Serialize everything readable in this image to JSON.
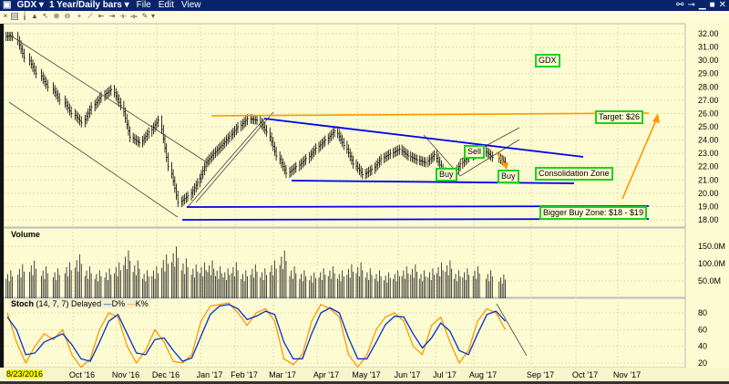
{
  "window": {
    "symbol": "GDX",
    "timeframe": "1 Year/Daily bars",
    "menu": [
      "File",
      "Edit",
      "View"
    ]
  },
  "panels": {
    "volume_title": "Volume",
    "stoch_title": "Stoch",
    "stoch_params": "(14, 7, 7) Delayed",
    "d_label": "D%",
    "k_label": "K%",
    "start_date_label": "8/23/2016"
  },
  "colors": {
    "titlebar": "#0a246a",
    "background": "#fdfbd2",
    "k": "#ff9900",
    "d": "#0033cc",
    "trend": "#0000ee",
    "target": "#ff9900",
    "label_border": "#1bd21b"
  },
  "annotations": [
    "GDX",
    "Target: $26",
    "Sell",
    "Buy",
    "Buy",
    "Consolidation Zone",
    "Bigger Buy Zone: $18 - $19"
  ],
  "chart_data": [
    {
      "type": "ohlc",
      "title": "GDX",
      "y_ticks": [
        "32.00",
        "31.00",
        "30.00",
        "29.00",
        "28.00",
        "27.00",
        "26.00",
        "25.00",
        "24.00",
        "23.00",
        "22.00",
        "21.00",
        "20.00",
        "19.00",
        "18.00"
      ],
      "ylim": [
        18,
        32
      ],
      "x_ticks": [
        "Oct '16",
        "Nov '16",
        "Dec '16",
        "Jan '17",
        "Feb '17",
        "Mar '17",
        "Apr '17",
        "May '17",
        "Jun '17",
        "Jul '17",
        "Aug '17",
        "Sep '17",
        "Oct '17",
        "Nov '17"
      ],
      "dates": [
        "2016-08-26",
        "2016-09-02",
        "2016-09-09",
        "2016-09-16",
        "2016-09-23",
        "2016-09-30",
        "2016-10-07",
        "2016-10-14",
        "2016-10-21",
        "2016-10-28",
        "2016-11-04",
        "2016-11-11",
        "2016-11-18",
        "2016-11-25",
        "2016-12-02",
        "2016-12-09",
        "2016-12-16",
        "2016-12-23",
        "2016-12-30",
        "2017-01-06",
        "2017-01-13",
        "2017-01-20",
        "2017-01-27",
        "2017-02-03",
        "2017-02-10",
        "2017-02-17",
        "2017-02-24",
        "2017-03-03",
        "2017-03-10",
        "2017-03-17",
        "2017-03-24",
        "2017-03-31",
        "2017-04-07",
        "2017-04-14",
        "2017-04-21",
        "2017-04-28",
        "2017-05-05",
        "2017-05-12",
        "2017-05-19",
        "2017-05-26",
        "2017-06-02",
        "2017-06-09",
        "2017-06-16",
        "2017-06-23",
        "2017-06-30",
        "2017-07-07",
        "2017-07-14",
        "2017-07-21",
        "2017-07-28",
        "2017-08-04",
        "2017-08-11",
        "2017-08-18"
      ],
      "close": [
        31.8,
        30.2,
        29.0,
        28.0,
        27.0,
        26.0,
        25.3,
        26.5,
        27.3,
        27.8,
        26.6,
        24.2,
        23.8,
        24.6,
        25.5,
        22.0,
        19.3,
        19.8,
        20.8,
        22.3,
        23.0,
        23.6,
        24.3,
        25.0,
        25.6,
        25.5,
        24.6,
        22.8,
        21.5,
        22.0,
        22.6,
        23.4,
        24.0,
        24.7,
        23.6,
        22.2,
        21.4,
        21.8,
        22.6,
        23.0,
        23.3,
        22.8,
        22.5,
        22.3,
        22.9,
        21.6,
        21.2,
        22.2,
        22.8,
        23.2,
        22.7,
        22.3
      ]
    },
    {
      "type": "bar",
      "title": "Volume",
      "y_ticks": [
        "150.0M",
        "100.0M",
        "50.0M"
      ],
      "unit": "M",
      "values": [
        70,
        85,
        95,
        80,
        75,
        90,
        110,
        80,
        70,
        75,
        90,
        120,
        95,
        70,
        80,
        110,
        130,
        100,
        85,
        90,
        95,
        80,
        75,
        90,
        70,
        85,
        75,
        95,
        120,
        80,
        70,
        65,
        75,
        80,
        70,
        85,
        90,
        75,
        70,
        65,
        70,
        80,
        85,
        70,
        75,
        90,
        95,
        70,
        75,
        80,
        70,
        60
      ]
    },
    {
      "type": "line",
      "title": "Stoch",
      "y_ticks": [
        "80",
        "60",
        "40",
        "20"
      ],
      "ylim": [
        0,
        100
      ],
      "series": [
        {
          "name": "K%",
          "values": [
            80,
            45,
            20,
            40,
            55,
            48,
            60,
            30,
            15,
            25,
            60,
            80,
            75,
            40,
            20,
            35,
            60,
            45,
            22,
            20,
            30,
            70,
            88,
            90,
            92,
            80,
            65,
            80,
            85,
            70,
            25,
            18,
            30,
            70,
            90,
            85,
            75,
            30,
            15,
            30,
            60,
            75,
            80,
            70,
            40,
            30,
            65,
            75,
            45,
            20,
            35,
            70,
            85,
            80,
            60
          ]
        },
        {
          "name": "D%",
          "values": [
            75,
            60,
            30,
            32,
            45,
            50,
            55,
            42,
            25,
            22,
            45,
            70,
            78,
            55,
            32,
            30,
            48,
            50,
            35,
            22,
            26,
            52,
            78,
            88,
            90,
            85,
            72,
            76,
            82,
            78,
            45,
            25,
            25,
            55,
            80,
            86,
            80,
            50,
            25,
            25,
            45,
            66,
            76,
            75,
            55,
            38,
            50,
            68,
            58,
            35,
            30,
            55,
            78,
            82,
            70
          ]
        }
      ]
    }
  ]
}
